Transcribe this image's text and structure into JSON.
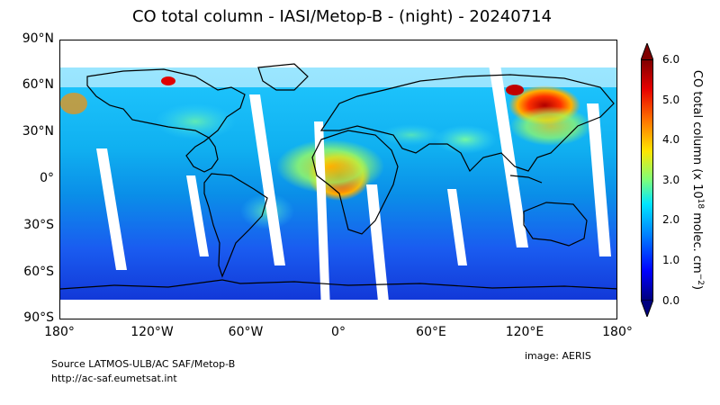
{
  "title": "CO total column - IASI/Metop-B - (night) - 20240714",
  "map": {
    "lat_ticks": [
      "90°N",
      "60°N",
      "30°N",
      "0°",
      "30°S",
      "60°S",
      "90°S"
    ],
    "lon_ticks": [
      "180°",
      "120°W",
      "60°W",
      "0°",
      "60°E",
      "120°E",
      "180°"
    ]
  },
  "colorbar": {
    "label_main": "CO total column (x 10",
    "label_sup": "18",
    "label_mid": " molec. cm",
    "label_sup2": "−2",
    "label_end": ")",
    "ticks": [
      "0.0",
      "1.0",
      "2.0",
      "3.0",
      "4.0",
      "5.0",
      "6.0"
    ],
    "colors": [
      "#00007f",
      "#0000ff",
      "#0080ff",
      "#00e5ff",
      "#7dff7a",
      "#ffe600",
      "#ff7300",
      "#e60000",
      "#800000"
    ]
  },
  "footer": {
    "source": "Source LATMOS-ULB/AC SAF/Metop-B",
    "url": "http://ac-saf.eumetsat.int",
    "credit": "image: AERIS"
  }
}
